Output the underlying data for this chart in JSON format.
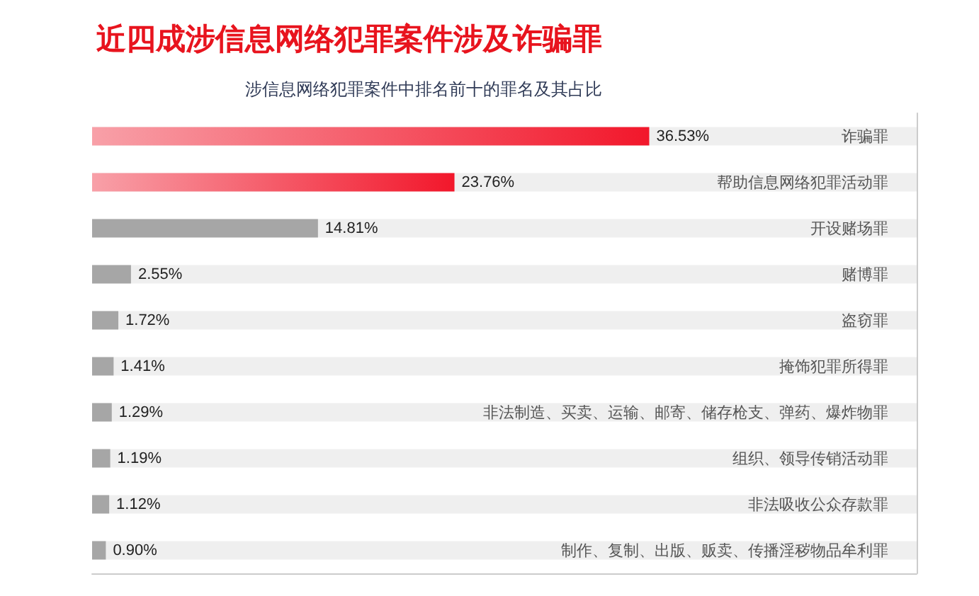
{
  "chart_data": {
    "type": "bar",
    "orientation": "horizontal",
    "title": "近四成涉信息网络犯罪案件涉及诈骗罪",
    "subtitle": "涉信息网络犯罪案件中排名前十的罪名及其占比",
    "categories": [
      "诈骗罪",
      "帮助信息网络犯罪活动罪",
      "开设赌场罪",
      "赌博罪",
      "盗窃罪",
      "掩饰犯罪所得罪",
      "非法制造、买卖、运输、邮寄、储存枪支、弹药、爆炸物罪",
      "组织、领导传销活动罪",
      "非法吸收公众存款罪",
      "制作、复制、出版、贩卖、传播淫秽物品牟利罪"
    ],
    "values": [
      36.53,
      23.76,
      14.81,
      2.55,
      1.72,
      1.41,
      1.29,
      1.19,
      1.12,
      0.9
    ],
    "value_labels": [
      "36.53%",
      "23.76%",
      "14.81%",
      "2.55%",
      "1.72%",
      "1.41%",
      "1.29%",
      "1.19%",
      "1.12%",
      "0.90%"
    ],
    "colors": [
      "#f2172b",
      "#f2172b",
      "#a6a6a6",
      "#a6a6a6",
      "#a6a6a6",
      "#a6a6a6",
      "#a6a6a6",
      "#a6a6a6",
      "#a6a6a6",
      "#a6a6a6"
    ],
    "grid": false
  }
}
